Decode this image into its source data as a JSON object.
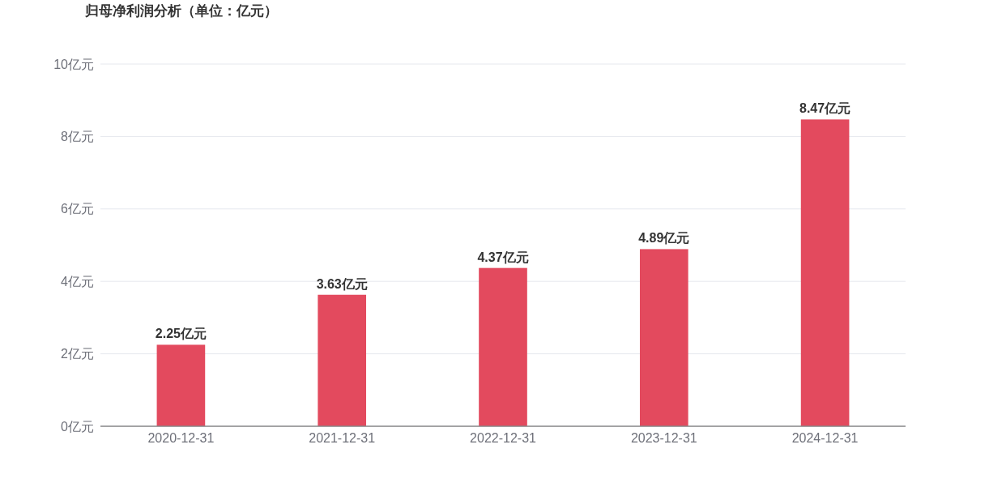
{
  "chart_data": {
    "type": "bar",
    "title": "归母净利润分析（单位：亿元）",
    "categories": [
      "2020-12-31",
      "2021-12-31",
      "2022-12-31",
      "2023-12-31",
      "2024-12-31"
    ],
    "values": [
      2.25,
      3.63,
      4.37,
      4.89,
      8.47
    ],
    "value_labels": [
      "2.25亿元",
      "3.63亿元",
      "4.37亿元",
      "4.89亿元",
      "8.47亿元"
    ],
    "color": "#e34a5e",
    "ylim": [
      0,
      10
    ],
    "yticks": [
      {
        "value": 0,
        "label": "0亿元"
      },
      {
        "value": 2,
        "label": "2亿元"
      },
      {
        "value": 4,
        "label": "4亿元"
      },
      {
        "value": 6,
        "label": "6亿元"
      },
      {
        "value": 8,
        "label": "8亿元"
      },
      {
        "value": 10,
        "label": "10亿元"
      }
    ],
    "grid": "y"
  }
}
